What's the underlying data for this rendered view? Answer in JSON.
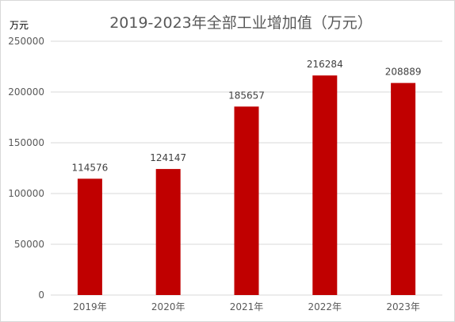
{
  "chart_data": {
    "type": "bar",
    "title": "2019-2023年全部工业增加值（万元）",
    "ylabel": "万元",
    "xlabel": "",
    "categories": [
      "2019年",
      "2020年",
      "2021年",
      "2022年",
      "2023年"
    ],
    "values": [
      114576,
      124147,
      185657,
      216284,
      208889
    ],
    "data_labels": [
      "114576",
      "124147",
      "185657",
      "216284",
      "208889"
    ],
    "ylim": [
      0,
      250000
    ],
    "yticks": [
      0,
      50000,
      100000,
      150000,
      200000,
      250000
    ],
    "ytick_labels": [
      "0",
      "50000",
      "100000",
      "150000",
      "200000",
      "250000"
    ],
    "grid": true,
    "legend": "none",
    "bar_color": "#c00000",
    "grid_color": "#d9d9d9"
  }
}
